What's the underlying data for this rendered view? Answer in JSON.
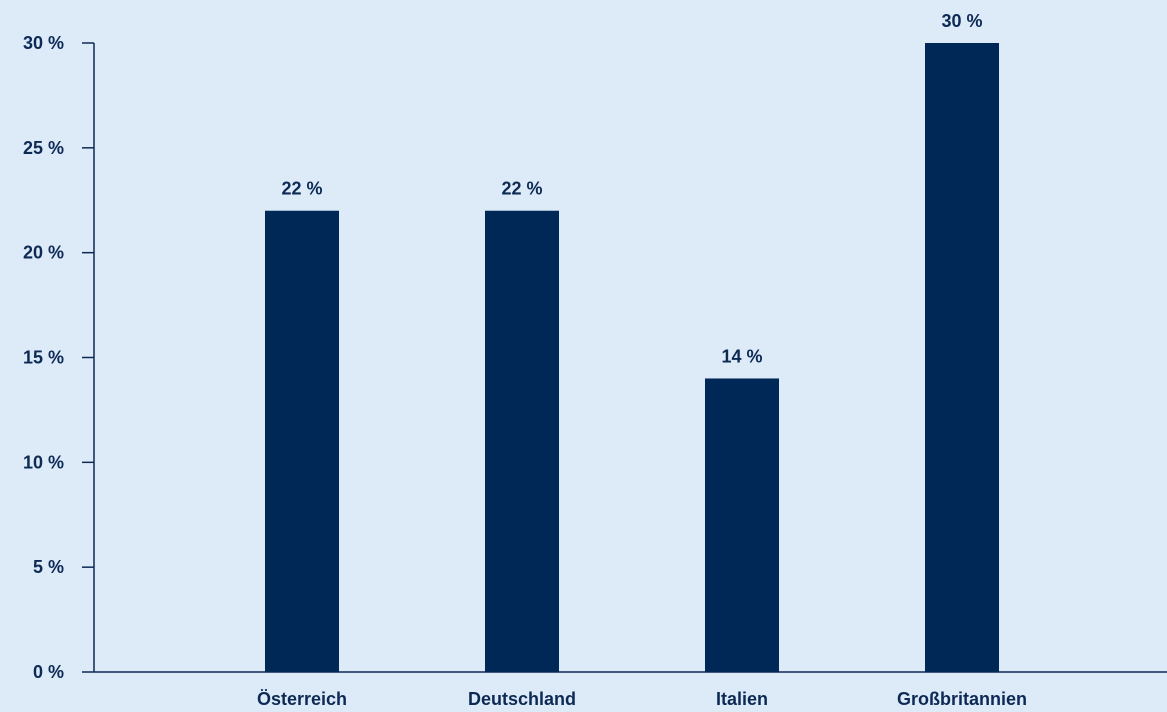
{
  "chart_data": {
    "type": "bar",
    "categories": [
      "Österreich",
      "Deutschland",
      "Italien",
      "Großbritannien"
    ],
    "values": [
      22,
      22,
      14,
      30
    ],
    "value_labels": [
      "22 %",
      "22 %",
      "14 %",
      "30 %"
    ],
    "title": "",
    "xlabel": "",
    "ylabel": "",
    "ylim": [
      0,
      30
    ],
    "yticks": [
      0,
      5,
      10,
      15,
      20,
      25,
      30
    ],
    "ytick_labels": [
      "0 %",
      "5 %",
      "10 %",
      "15 %",
      "20 %",
      "25 %",
      "30 %"
    ],
    "grid": false,
    "legend": "none",
    "colors": {
      "bar": "#002856",
      "axis": "#0d2a55",
      "background": "#ddeaf8"
    }
  }
}
